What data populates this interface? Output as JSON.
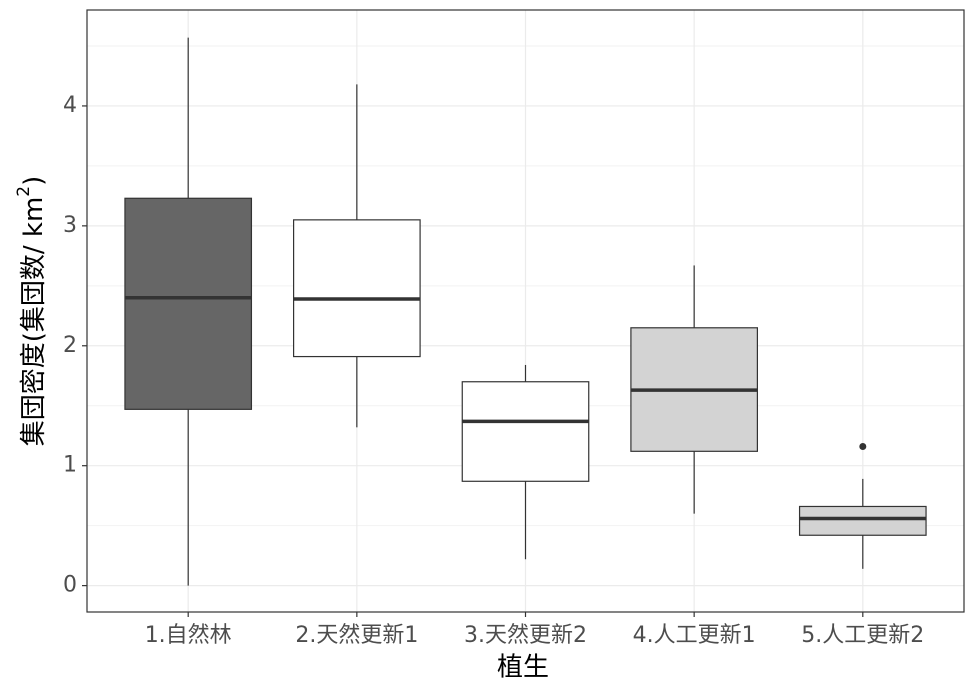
{
  "chart_data": {
    "type": "box",
    "categories": [
      "1.自然林",
      "2.天然更新1",
      "3.天然更新2",
      "4.人工更新1",
      "5.人工更新2"
    ],
    "series": [
      {
        "color": "#666666",
        "min": 0.0,
        "q1": 1.47,
        "median": 2.4,
        "q3": 3.23,
        "max": 4.57,
        "outliers": []
      },
      {
        "color": "#ffffff",
        "min": 1.32,
        "q1": 1.91,
        "median": 2.39,
        "q3": 3.05,
        "max": 4.18,
        "outliers": []
      },
      {
        "color": "#ffffff",
        "min": 0.22,
        "q1": 0.87,
        "median": 1.37,
        "q3": 1.7,
        "max": 1.84,
        "outliers": []
      },
      {
        "color": "#d3d3d3",
        "min": 0.6,
        "q1": 1.12,
        "median": 1.63,
        "q3": 2.15,
        "max": 2.67,
        "outliers": []
      },
      {
        "color": "#d3d3d3",
        "min": 0.14,
        "q1": 0.42,
        "median": 0.56,
        "q3": 0.66,
        "max": 0.89,
        "outliers": [
          1.16
        ]
      }
    ],
    "x_label": "植生",
    "y_label": {
      "text": "集団密度(集団数/ km",
      "superscript": "2",
      "suffix": ")"
    },
    "ylim": [
      -0.22,
      4.8
    ],
    "yticks": [
      0,
      1,
      2,
      3,
      4
    ],
    "grid": true,
    "minor_grid": true
  }
}
